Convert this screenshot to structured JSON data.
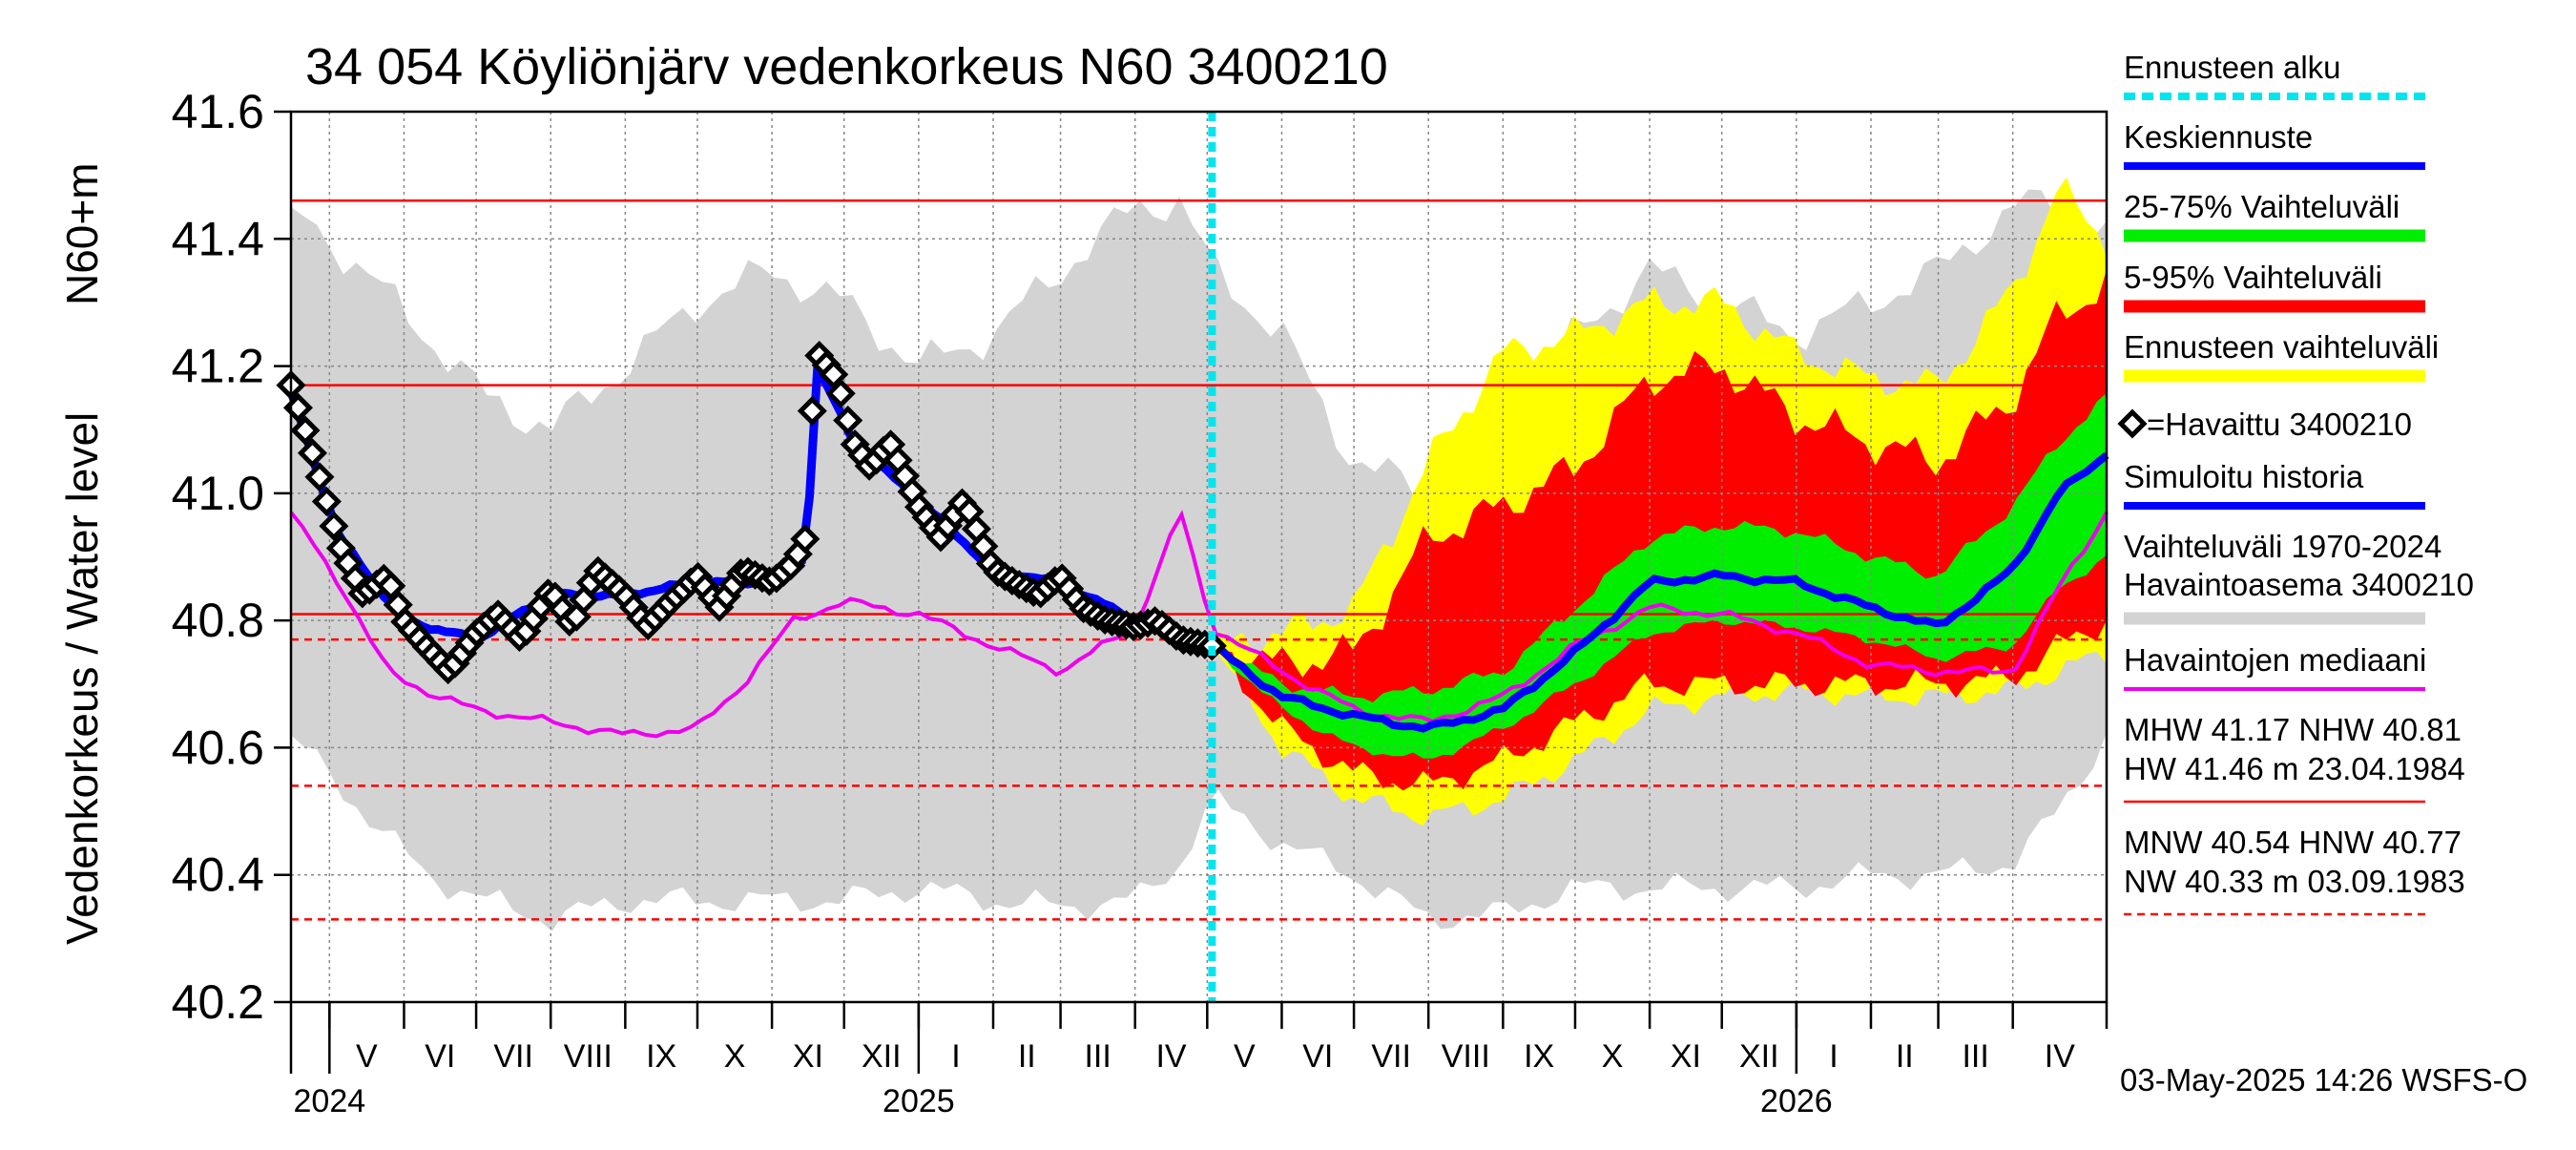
{
  "chart_data": {
    "type": "line",
    "title": "34 054 Köyliönjärv vedenkorkeus N60 3400210",
    "ylabel_main": "Vedenkorkeus / Water level",
    "ylabel_unit": "N60+m",
    "ylim": [
      40.2,
      41.6
    ],
    "yticks": [
      "40.2",
      "40.4",
      "40.6",
      "40.8",
      "41.0",
      "41.2",
      "41.4",
      "41.6"
    ],
    "x_start": "2024-04-15",
    "x_end": "2026-05-10",
    "forecast_start": "2025-05-03",
    "months": [
      {
        "label": "V",
        "start": "2024-05-01"
      },
      {
        "label": "VI",
        "start": "2024-06-01"
      },
      {
        "label": "VII",
        "start": "2024-07-01"
      },
      {
        "label": "VIII",
        "start": "2024-08-01"
      },
      {
        "label": "IX",
        "start": "2024-09-01"
      },
      {
        "label": "X",
        "start": "2024-10-01"
      },
      {
        "label": "XI",
        "start": "2024-11-01"
      },
      {
        "label": "XII",
        "start": "2024-12-01"
      },
      {
        "label": "I",
        "start": "2025-01-01"
      },
      {
        "label": "II",
        "start": "2025-02-01"
      },
      {
        "label": "III",
        "start": "2025-03-01"
      },
      {
        "label": "IV",
        "start": "2025-04-01"
      },
      {
        "label": "V",
        "start": "2025-05-01"
      },
      {
        "label": "VI",
        "start": "2025-06-01"
      },
      {
        "label": "VII",
        "start": "2025-07-01"
      },
      {
        "label": "VIII",
        "start": "2025-08-01"
      },
      {
        "label": "IX",
        "start": "2025-09-01"
      },
      {
        "label": "X",
        "start": "2025-10-01"
      },
      {
        "label": "XI",
        "start": "2025-11-01"
      },
      {
        "label": "XII",
        "start": "2025-12-01"
      },
      {
        "label": "I",
        "start": "2026-01-01"
      },
      {
        "label": "II",
        "start": "2026-02-01"
      },
      {
        "label": "III",
        "start": "2026-03-01"
      },
      {
        "label": "IV",
        "start": "2026-04-01"
      }
    ],
    "years": [
      {
        "label": "2024",
        "at": "2024-05-01"
      },
      {
        "label": "2025",
        "at": "2025-01-01"
      },
      {
        "label": "2026",
        "at": "2026-01-01"
      }
    ],
    "reference_lines": [
      {
        "name": "HW",
        "value": 41.46,
        "style": "solid"
      },
      {
        "name": "MHW",
        "value": 41.17,
        "style": "solid"
      },
      {
        "name": "NHW",
        "value": 40.81,
        "style": "solid"
      },
      {
        "name": "HNW",
        "value": 40.77,
        "style": "dashed"
      },
      {
        "name": "MNW",
        "value": 40.54,
        "style": "dashed"
      },
      {
        "name": "NW",
        "value": 40.33,
        "style": "dashed"
      }
    ],
    "historical_range": {
      "x": [
        "2024-04-15",
        "2024-05-15",
        "2024-06-10",
        "2024-07-05",
        "2024-08-01",
        "2024-09-01",
        "2024-10-01",
        "2024-11-01",
        "2024-12-01",
        "2025-01-01",
        "2025-02-01",
        "2025-03-01",
        "2025-04-01",
        "2025-04-20",
        "2025-05-03",
        "2025-06-01",
        "2025-07-01",
        "2025-08-01",
        "2025-09-01",
        "2025-10-01",
        "2025-11-01",
        "2025-12-01",
        "2026-01-01",
        "2026-02-01",
        "2026-03-01",
        "2026-04-01",
        "2026-04-20",
        "2026-05-10"
      ],
      "low": [
        40.62,
        40.5,
        40.4,
        40.36,
        40.33,
        40.36,
        40.36,
        40.36,
        40.36,
        40.38,
        40.36,
        40.35,
        40.36,
        40.42,
        40.52,
        40.45,
        40.4,
        40.33,
        40.34,
        40.38,
        40.38,
        40.38,
        40.38,
        40.4,
        40.4,
        40.42,
        40.5,
        40.62
      ],
      "high": [
        41.45,
        41.35,
        41.25,
        41.15,
        41.1,
        41.2,
        41.3,
        41.35,
        41.3,
        41.2,
        41.25,
        41.35,
        41.45,
        41.46,
        41.35,
        41.25,
        41.05,
        41.0,
        41.1,
        41.25,
        41.35,
        41.3,
        41.25,
        41.3,
        41.35,
        41.45,
        41.46,
        41.4
      ]
    },
    "observed": {
      "name": "=Havaittu 3400210",
      "x": [
        "2024-04-15",
        "2024-04-25",
        "2024-05-05",
        "2024-05-15",
        "2024-05-25",
        "2024-06-01",
        "2024-06-10",
        "2024-06-20",
        "2024-07-01",
        "2024-07-10",
        "2024-07-20",
        "2024-08-01",
        "2024-08-10",
        "2024-08-20",
        "2024-09-01",
        "2024-09-10",
        "2024-09-20",
        "2024-10-01",
        "2024-10-10",
        "2024-10-20",
        "2024-11-01",
        "2024-11-10",
        "2024-11-15",
        "2024-11-17",
        "2024-11-20",
        "2024-11-28",
        "2024-12-05",
        "2024-12-12",
        "2024-12-20",
        "2025-01-01",
        "2025-01-10",
        "2025-01-20",
        "2025-02-01",
        "2025-02-10",
        "2025-02-20",
        "2025-03-01",
        "2025-03-10",
        "2025-03-20",
        "2025-04-01",
        "2025-04-10",
        "2025-04-20",
        "2025-05-03"
      ],
      "values": [
        41.17,
        41.05,
        40.92,
        40.84,
        40.87,
        40.8,
        40.76,
        40.72,
        40.78,
        40.81,
        40.77,
        40.85,
        40.79,
        40.88,
        40.84,
        40.79,
        40.83,
        40.87,
        40.82,
        40.88,
        40.86,
        40.89,
        40.93,
        41.1,
        41.22,
        41.18,
        41.08,
        41.04,
        41.08,
        40.98,
        40.93,
        40.99,
        40.88,
        40.86,
        40.84,
        40.87,
        40.82,
        40.8,
        40.79,
        40.8,
        40.77,
        40.76
      ]
    },
    "simulated_history": {
      "name": "Simuloitu historia",
      "x": [
        "2024-04-15",
        "2024-05-05",
        "2024-06-01",
        "2024-07-01",
        "2024-08-01",
        "2024-09-01",
        "2024-10-01",
        "2024-11-01",
        "2024-11-15",
        "2024-11-20",
        "2024-12-05",
        "2025-01-01",
        "2025-02-01",
        "2025-03-01",
        "2025-04-01",
        "2025-05-03"
      ],
      "values": [
        41.16,
        40.93,
        40.8,
        40.77,
        40.84,
        40.84,
        40.86,
        40.86,
        40.9,
        41.2,
        41.08,
        40.99,
        40.88,
        40.86,
        40.8,
        40.76
      ]
    },
    "median": {
      "name": "Havaintojen mediaani",
      "x": [
        "2024-04-15",
        "2024-05-05",
        "2024-05-25",
        "2024-06-15",
        "2024-07-01",
        "2024-08-01",
        "2024-09-01",
        "2024-10-01",
        "2024-10-20",
        "2024-11-10",
        "2024-12-01",
        "2025-01-01",
        "2025-02-01",
        "2025-03-01",
        "2025-04-01",
        "2025-04-20",
        "2025-05-03",
        "2025-06-01",
        "2025-07-01",
        "2025-08-01",
        "2025-09-01",
        "2025-10-01",
        "2025-11-01",
        "2025-12-01",
        "2026-01-01",
        "2026-02-01",
        "2026-03-01",
        "2026-04-01",
        "2026-04-20",
        "2026-05-10"
      ],
      "values": [
        40.97,
        40.86,
        40.72,
        40.68,
        40.66,
        40.64,
        40.62,
        40.63,
        40.7,
        40.8,
        40.83,
        40.81,
        40.76,
        40.72,
        40.79,
        40.97,
        40.79,
        40.72,
        40.66,
        40.64,
        40.68,
        40.76,
        40.82,
        40.81,
        40.78,
        40.73,
        40.72,
        40.72,
        40.85,
        40.97
      ]
    },
    "forecast_x": [
      "2025-05-03",
      "2025-06-01",
      "2025-07-01",
      "2025-08-01",
      "2025-09-01",
      "2025-10-01",
      "2025-11-01",
      "2025-12-01",
      "2026-01-01",
      "2026-02-01",
      "2026-03-01",
      "2026-04-01",
      "2026-04-20",
      "2026-05-10"
    ],
    "forecast_mean": {
      "name": "Keskiennuste",
      "values": [
        40.76,
        40.68,
        40.65,
        40.63,
        40.66,
        40.75,
        40.86,
        40.87,
        40.86,
        40.82,
        40.79,
        40.88,
        41.0,
        41.06
      ]
    },
    "band_25_75": {
      "name": "25-75% Vaihteluväli",
      "low": [
        40.76,
        40.66,
        40.6,
        40.58,
        40.63,
        40.7,
        40.78,
        40.8,
        40.79,
        40.77,
        40.74,
        40.76,
        40.85,
        40.9
      ],
      "high": [
        40.76,
        40.7,
        40.68,
        40.69,
        40.72,
        40.82,
        40.93,
        40.95,
        40.94,
        40.9,
        40.87,
        40.98,
        41.08,
        41.15
      ]
    },
    "band_5_95": {
      "name": "5-95% Vaihteluväli",
      "low": [
        40.76,
        40.63,
        40.56,
        40.54,
        40.58,
        40.64,
        40.7,
        40.7,
        40.7,
        40.7,
        40.7,
        40.71,
        40.76,
        40.8
      ],
      "high": [
        40.76,
        40.73,
        40.75,
        40.93,
        40.98,
        41.04,
        41.18,
        41.2,
        41.12,
        41.08,
        41.05,
        41.15,
        41.28,
        41.33
      ]
    },
    "band_forecast": {
      "name": "Ennusteen vaihteluväli",
      "low": [
        40.76,
        40.6,
        40.52,
        40.49,
        40.52,
        40.58,
        40.66,
        40.68,
        40.69,
        40.68,
        40.68,
        40.69,
        40.72,
        40.75
      ],
      "high": [
        40.76,
        40.78,
        40.82,
        41.05,
        41.22,
        41.25,
        41.3,
        41.3,
        41.22,
        41.18,
        41.17,
        41.32,
        41.48,
        41.4
      ]
    },
    "legend": {
      "forecast_start": "Ennusteen alku",
      "mean": "Keskiennuste",
      "band_25_75": "25-75% Vaihteluväli",
      "band_5_95": "5-95% Vaihteluväli",
      "band_forecast": "Ennusteen vaihteluväli",
      "observed": "=Havaittu 3400210",
      "simulated": "Simuloitu historia",
      "range_line1": "Vaihteluväli 1970-2024",
      "range_line2": " Havaintoasema 3400210",
      "median": "Havaintojen mediaani",
      "stats_line1": "MHW  41.17 NHW  40.81",
      "stats_line2": "HW  41.46 m 23.04.1984",
      "stats_line3": "MNW  40.54 HNW  40.77",
      "stats_line4": "NW  40.33 m 03.09.1983"
    },
    "colors": {
      "range": "#d3d3d3",
      "band_forecast": "#ffff00",
      "band_5_95": "#ff0000",
      "band_25_75": "#00ee00",
      "mean": "#0000ff",
      "simulated": "#0000ff",
      "observed": "#000000",
      "median": "#ee00ee",
      "forecast_start": "#00e5ee",
      "ref_line": "#ff0000"
    },
    "timestamp": "03-May-2025 14:26 WSFS-O"
  }
}
